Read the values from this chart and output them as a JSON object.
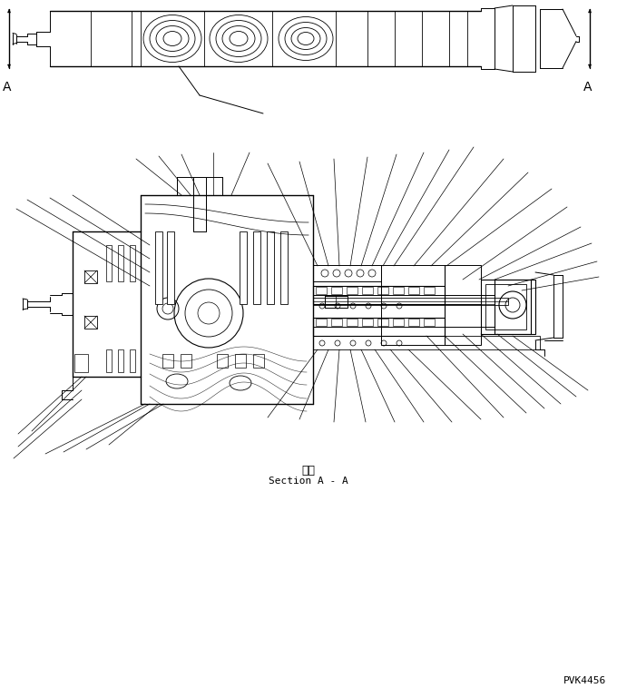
{
  "section_label_jp": "断面",
  "section_label_en": "Section A - A",
  "part_number": "PVK4456",
  "bg_color": "#ffffff",
  "line_color": "#000000",
  "fig_width": 6.8,
  "fig_height": 7.69,
  "dpi": 100
}
